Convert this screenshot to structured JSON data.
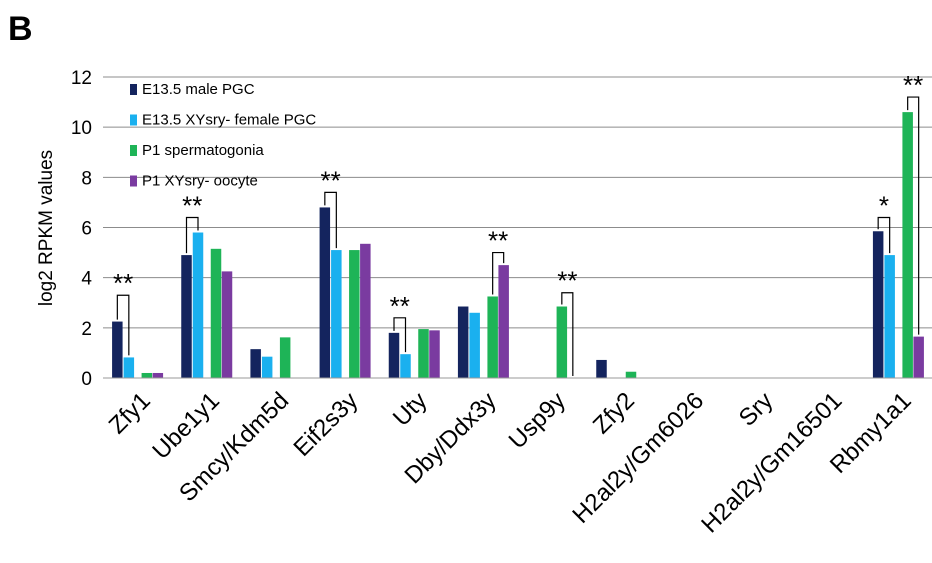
{
  "panel_label": "B",
  "chart_data": {
    "type": "bar",
    "title": "",
    "xlabel": "",
    "ylabel": "log2 RPKM values",
    "ylim": [
      0,
      12
    ],
    "yticks": [
      0,
      2,
      4,
      6,
      8,
      10,
      12
    ],
    "grid": "horizontal",
    "legend_position": "top-left",
    "categories": [
      "Zfy1",
      "Ube1y1",
      "Smcy/Kdm5d",
      "Eif2s3y",
      "Uty",
      "Dby/Ddx3y",
      "Usp9y",
      "Zfy2",
      "H2al2y/Gm6026",
      "Sry",
      "H2al2y/Gm16501",
      "Rbmy1a1"
    ],
    "series": [
      {
        "name": "E13.5 male PGC",
        "color": "#14245e",
        "values": [
          2.25,
          4.9,
          1.15,
          6.8,
          1.8,
          2.85,
          0,
          0.72,
          0,
          0,
          0,
          5.85
        ]
      },
      {
        "name": "E13.5 XYsry- female PGC",
        "color": "#1ab0ef",
        "values": [
          0.82,
          5.8,
          0.85,
          5.1,
          0.95,
          2.6,
          0,
          0,
          0,
          0,
          0,
          4.9
        ]
      },
      {
        "name": "P1 spermatogonia",
        "color": "#1eb457",
        "values": [
          0.2,
          5.15,
          1.62,
          5.1,
          1.95,
          3.25,
          2.85,
          0.25,
          0,
          0,
          0,
          10.6
        ]
      },
      {
        "name": "P1 XYsry- oocyte",
        "color": "#7a3ba0",
        "values": [
          0.2,
          4.25,
          0,
          5.35,
          1.9,
          4.5,
          0,
          0,
          0,
          0,
          0,
          1.65
        ]
      }
    ],
    "annotations": [
      {
        "text": "**",
        "category": "Zfy1",
        "from_series": 0,
        "to_series": 1,
        "bracket_top": 3.3
      },
      {
        "text": "**",
        "category": "Ube1y1",
        "from_series": 0,
        "to_series": 1,
        "bracket_top": 6.4
      },
      {
        "text": "**",
        "category": "Eif2s3y",
        "from_series": 0,
        "to_series": 1,
        "bracket_top": 7.4
      },
      {
        "text": "**",
        "category": "Uty",
        "from_series": 0,
        "to_series": 1,
        "bracket_top": 2.4
      },
      {
        "text": "**",
        "category": "Dby/Ddx3y",
        "from_series": 2,
        "to_series": 3,
        "bracket_top": 5.0
      },
      {
        "text": "**",
        "category": "Usp9y",
        "from_series": 2,
        "to_series": 3,
        "bracket_top": 3.4
      },
      {
        "text": "*",
        "category": "Rbmy1a1",
        "from_series": 0,
        "to_series": 1,
        "bracket_top": 6.4
      },
      {
        "text": "**",
        "category": "Rbmy1a1",
        "from_series": 2,
        "to_series": 3,
        "bracket_top": 11.2
      }
    ]
  }
}
